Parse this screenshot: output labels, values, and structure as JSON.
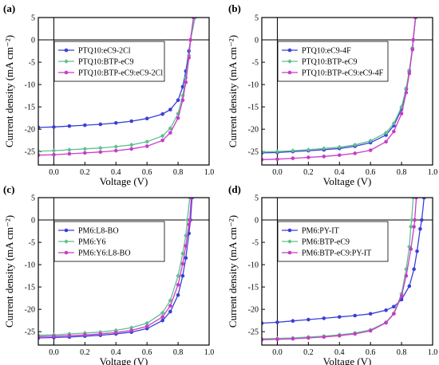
{
  "chart_data": [
    {
      "type": "line",
      "panel_label": "(a)",
      "xlabel": "Voltage (V)",
      "ylabel": "Current density (mA cm⁻²)",
      "xlim": [
        -0.1,
        1.0
      ],
      "ylim": [
        -28,
        5
      ],
      "xticks": [
        0.0,
        0.2,
        0.4,
        0.6,
        0.8,
        1.0
      ],
      "xtick_labels": [
        "0.0",
        "0.2",
        "0.4",
        "0.6",
        "0.8",
        "1.0"
      ],
      "yticks": [
        5,
        0,
        -5,
        -10,
        -15,
        -20,
        -25
      ],
      "ytick_labels": [
        "5",
        "0",
        "-5",
        "-10",
        "-15",
        "-20",
        "-25"
      ],
      "legend_position": "top-left",
      "series": [
        {
          "name": "PTQ10:eC9-2Cl",
          "color": "#3a3fd6",
          "points": [
            [
              -0.1,
              -19.6
            ],
            [
              0.0,
              -19.5
            ],
            [
              0.1,
              -19.3
            ],
            [
              0.2,
              -19.1
            ],
            [
              0.3,
              -18.9
            ],
            [
              0.4,
              -18.6
            ],
            [
              0.5,
              -18.2
            ],
            [
              0.6,
              -17.6
            ],
            [
              0.7,
              -16.6
            ],
            [
              0.75,
              -15.6
            ],
            [
              0.8,
              -13.5
            ],
            [
              0.83,
              -10.5
            ],
            [
              0.85,
              -7.0
            ],
            [
              0.87,
              -2.5
            ],
            [
              0.88,
              0.0
            ],
            [
              0.9,
              5.0
            ]
          ]
        },
        {
          "name": "PTQ10:BTP-eC9",
          "color": "#5fbf8f",
          "points": [
            [
              -0.1,
              -24.9
            ],
            [
              0.0,
              -24.8
            ],
            [
              0.1,
              -24.6
            ],
            [
              0.2,
              -24.4
            ],
            [
              0.3,
              -24.2
            ],
            [
              0.4,
              -23.9
            ],
            [
              0.5,
              -23.5
            ],
            [
              0.6,
              -22.8
            ],
            [
              0.7,
              -21.5
            ],
            [
              0.75,
              -19.8
            ],
            [
              0.8,
              -16.5
            ],
            [
              0.83,
              -12.5
            ],
            [
              0.85,
              -8.5
            ],
            [
              0.87,
              -3.5
            ],
            [
              0.88,
              0.0
            ],
            [
              0.91,
              5.0
            ]
          ]
        },
        {
          "name": "PTQ10:BTP-eC9:eC9-2Cl",
          "color": "#c83cc8",
          "points": [
            [
              -0.1,
              -25.8
            ],
            [
              0.0,
              -25.7
            ],
            [
              0.1,
              -25.5
            ],
            [
              0.2,
              -25.3
            ],
            [
              0.3,
              -25.1
            ],
            [
              0.4,
              -24.8
            ],
            [
              0.5,
              -24.4
            ],
            [
              0.6,
              -23.8
            ],
            [
              0.7,
              -22.5
            ],
            [
              0.75,
              -20.8
            ],
            [
              0.8,
              -17.5
            ],
            [
              0.83,
              -13.5
            ],
            [
              0.85,
              -9.5
            ],
            [
              0.87,
              -4.0
            ],
            [
              0.88,
              0.0
            ],
            [
              0.9,
              5.0
            ]
          ]
        }
      ]
    },
    {
      "type": "line",
      "panel_label": "(b)",
      "xlabel": "Voltage (V)",
      "ylabel": "Current density (mA cm⁻²)",
      "xlim": [
        -0.1,
        1.0
      ],
      "ylim": [
        -28,
        5
      ],
      "xticks": [
        0.0,
        0.2,
        0.4,
        0.6,
        0.8,
        1.0
      ],
      "xtick_labels": [
        "0.0",
        "0.2",
        "0.4",
        "0.6",
        "0.8",
        "1.0"
      ],
      "yticks": [
        5,
        0,
        -5,
        -10,
        -15,
        -20,
        -25
      ],
      "ytick_labels": [
        "5",
        "0",
        "-5",
        "-10",
        "-15",
        "-20",
        "-25"
      ],
      "legend_position": "top-left",
      "series": [
        {
          "name": "PTQ10:eC9-4F",
          "color": "#3a3fd6",
          "points": [
            [
              -0.1,
              -25.3
            ],
            [
              0.0,
              -25.2
            ],
            [
              0.1,
              -25.0
            ],
            [
              0.2,
              -24.8
            ],
            [
              0.3,
              -24.6
            ],
            [
              0.4,
              -24.3
            ],
            [
              0.5,
              -23.8
            ],
            [
              0.6,
              -23.0
            ],
            [
              0.7,
              -21.3
            ],
            [
              0.75,
              -19.2
            ],
            [
              0.8,
              -15.5
            ],
            [
              0.83,
              -11.0
            ],
            [
              0.85,
              -7.0
            ],
            [
              0.87,
              -2.0
            ],
            [
              0.875,
              0.0
            ],
            [
              0.89,
              5.0
            ]
          ]
        },
        {
          "name": "PTQ10:BTP-eC9",
          "color": "#5fbf8f",
          "points": [
            [
              -0.1,
              -25.1
            ],
            [
              0.0,
              -25.0
            ],
            [
              0.1,
              -24.8
            ],
            [
              0.2,
              -24.6
            ],
            [
              0.3,
              -24.3
            ],
            [
              0.4,
              -24.0
            ],
            [
              0.5,
              -23.5
            ],
            [
              0.6,
              -22.6
            ],
            [
              0.7,
              -20.8
            ],
            [
              0.75,
              -18.7
            ],
            [
              0.8,
              -15.0
            ],
            [
              0.83,
              -10.8
            ],
            [
              0.85,
              -6.8
            ],
            [
              0.87,
              -1.8
            ],
            [
              0.875,
              0.0
            ],
            [
              0.89,
              5.0
            ]
          ]
        },
        {
          "name": "PTQ10:BTP-eC9:eC9-4F",
          "color": "#c83cc8",
          "points": [
            [
              -0.1,
              -26.8
            ],
            [
              0.0,
              -26.7
            ],
            [
              0.1,
              -26.5
            ],
            [
              0.2,
              -26.3
            ],
            [
              0.3,
              -26.1
            ],
            [
              0.4,
              -25.8
            ],
            [
              0.5,
              -25.4
            ],
            [
              0.6,
              -24.7
            ],
            [
              0.7,
              -22.8
            ],
            [
              0.75,
              -20.5
            ],
            [
              0.8,
              -16.5
            ],
            [
              0.83,
              -11.8
            ],
            [
              0.85,
              -7.5
            ],
            [
              0.87,
              -2.2
            ],
            [
              0.875,
              0.0
            ],
            [
              0.89,
              5.0
            ]
          ]
        }
      ]
    },
    {
      "type": "line",
      "panel_label": "(c)",
      "xlabel": "Voltage (V)",
      "ylabel": "Current density (mA cm⁻²)",
      "xlim": [
        -0.1,
        1.0
      ],
      "ylim": [
        -28,
        5
      ],
      "xticks": [
        0.0,
        0.2,
        0.4,
        0.6,
        0.8,
        1.0
      ],
      "xtick_labels": [
        "0.0",
        "0.2",
        "0.4",
        "0.6",
        "0.8",
        "1.0"
      ],
      "yticks": [
        5,
        0,
        -5,
        -10,
        -15,
        -20,
        -25
      ],
      "ytick_labels": [
        "5",
        "0",
        "-5",
        "-10",
        "-15",
        "-20",
        "-25"
      ],
      "legend_position": "top-left",
      "series": [
        {
          "name": "PM6:L8-BO",
          "color": "#3a3fd6",
          "points": [
            [
              -0.1,
              -26.4
            ],
            [
              0.0,
              -26.3
            ],
            [
              0.1,
              -26.2
            ],
            [
              0.2,
              -26.0
            ],
            [
              0.3,
              -25.8
            ],
            [
              0.4,
              -25.5
            ],
            [
              0.5,
              -25.1
            ],
            [
              0.6,
              -24.3
            ],
            [
              0.7,
              -22.5
            ],
            [
              0.75,
              -20.5
            ],
            [
              0.8,
              -16.8
            ],
            [
              0.83,
              -12.5
            ],
            [
              0.85,
              -8.5
            ],
            [
              0.87,
              -3.0
            ],
            [
              0.88,
              0.0
            ],
            [
              0.89,
              5.0
            ]
          ]
        },
        {
          "name": "PM6:Y6",
          "color": "#5fbf8f",
          "points": [
            [
              -0.1,
              -25.8
            ],
            [
              0.0,
              -25.7
            ],
            [
              0.1,
              -25.5
            ],
            [
              0.2,
              -25.3
            ],
            [
              0.3,
              -25.1
            ],
            [
              0.4,
              -24.7
            ],
            [
              0.5,
              -24.1
            ],
            [
              0.6,
              -23.1
            ],
            [
              0.7,
              -20.8
            ],
            [
              0.75,
              -18.0
            ],
            [
              0.8,
              -12.5
            ],
            [
              0.83,
              -7.5
            ],
            [
              0.85,
              -3.5
            ],
            [
              0.86,
              0.0
            ],
            [
              0.875,
              5.0
            ]
          ]
        },
        {
          "name": "PM6:Y6:L8-BO",
          "color": "#c83cc8",
          "points": [
            [
              -0.1,
              -26.1
            ],
            [
              0.0,
              -26.0
            ],
            [
              0.1,
              -25.9
            ],
            [
              0.2,
              -25.7
            ],
            [
              0.3,
              -25.5
            ],
            [
              0.4,
              -25.2
            ],
            [
              0.5,
              -24.7
            ],
            [
              0.6,
              -23.8
            ],
            [
              0.7,
              -21.7
            ],
            [
              0.75,
              -19.2
            ],
            [
              0.8,
              -14.5
            ],
            [
              0.83,
              -9.8
            ],
            [
              0.85,
              -5.8
            ],
            [
              0.87,
              -1.0
            ],
            [
              0.875,
              0.0
            ],
            [
              0.885,
              5.0
            ]
          ]
        }
      ]
    },
    {
      "type": "line",
      "panel_label": "(d)",
      "xlabel": "Voltage (V)",
      "ylabel": "Current density (mA cm⁻²)",
      "xlim": [
        -0.1,
        1.0
      ],
      "ylim": [
        -28,
        5
      ],
      "xticks": [
        0.0,
        0.2,
        0.4,
        0.6,
        0.8,
        1.0
      ],
      "xtick_labels": [
        "0.0",
        "0.2",
        "0.4",
        "0.6",
        "0.8",
        "1.0"
      ],
      "yticks": [
        5,
        0,
        -5,
        -10,
        -15,
        -20,
        -25
      ],
      "ytick_labels": [
        "5",
        "0",
        "-5",
        "-10",
        "-15",
        "-20",
        "-25"
      ],
      "legend_position": "top-left",
      "series": [
        {
          "name": "PM6:PY-IT",
          "color": "#3a3fd6",
          "points": [
            [
              -0.1,
              -23.1
            ],
            [
              0.0,
              -22.9
            ],
            [
              0.1,
              -22.6
            ],
            [
              0.2,
              -22.3
            ],
            [
              0.3,
              -22.0
            ],
            [
              0.4,
              -21.7
            ],
            [
              0.5,
              -21.4
            ],
            [
              0.6,
              -21.0
            ],
            [
              0.7,
              -20.2
            ],
            [
              0.75,
              -19.4
            ],
            [
              0.8,
              -17.8
            ],
            [
              0.85,
              -14.8
            ],
            [
              0.88,
              -11.0
            ],
            [
              0.9,
              -7.0
            ],
            [
              0.92,
              -2.0
            ],
            [
              0.93,
              0.0
            ],
            [
              0.945,
              5.0
            ]
          ]
        },
        {
          "name": "PM6:BTP-eC9",
          "color": "#5fbf8f",
          "points": [
            [
              -0.1,
              -26.6
            ],
            [
              0.0,
              -26.5
            ],
            [
              0.1,
              -26.4
            ],
            [
              0.2,
              -26.2
            ],
            [
              0.3,
              -26.0
            ],
            [
              0.4,
              -25.7
            ],
            [
              0.5,
              -25.3
            ],
            [
              0.6,
              -24.6
            ],
            [
              0.7,
              -22.9
            ],
            [
              0.75,
              -20.9
            ],
            [
              0.8,
              -16.5
            ],
            [
              0.83,
              -11.0
            ],
            [
              0.85,
              -6.0
            ],
            [
              0.86,
              -1.5
            ],
            [
              0.865,
              0.0
            ],
            [
              0.875,
              5.0
            ]
          ]
        },
        {
          "name": "PM6:BTP-eC9:PY-IT",
          "color": "#c83cc8",
          "points": [
            [
              -0.1,
              -26.8
            ],
            [
              0.0,
              -26.7
            ],
            [
              0.1,
              -26.6
            ],
            [
              0.2,
              -26.4
            ],
            [
              0.3,
              -26.2
            ],
            [
              0.4,
              -25.9
            ],
            [
              0.5,
              -25.5
            ],
            [
              0.6,
              -24.8
            ],
            [
              0.7,
              -23.0
            ],
            [
              0.75,
              -21.0
            ],
            [
              0.8,
              -17.0
            ],
            [
              0.83,
              -12.5
            ],
            [
              0.86,
              -6.5
            ],
            [
              0.88,
              -1.5
            ],
            [
              0.885,
              0.0
            ],
            [
              0.895,
              5.0
            ]
          ]
        }
      ]
    }
  ]
}
